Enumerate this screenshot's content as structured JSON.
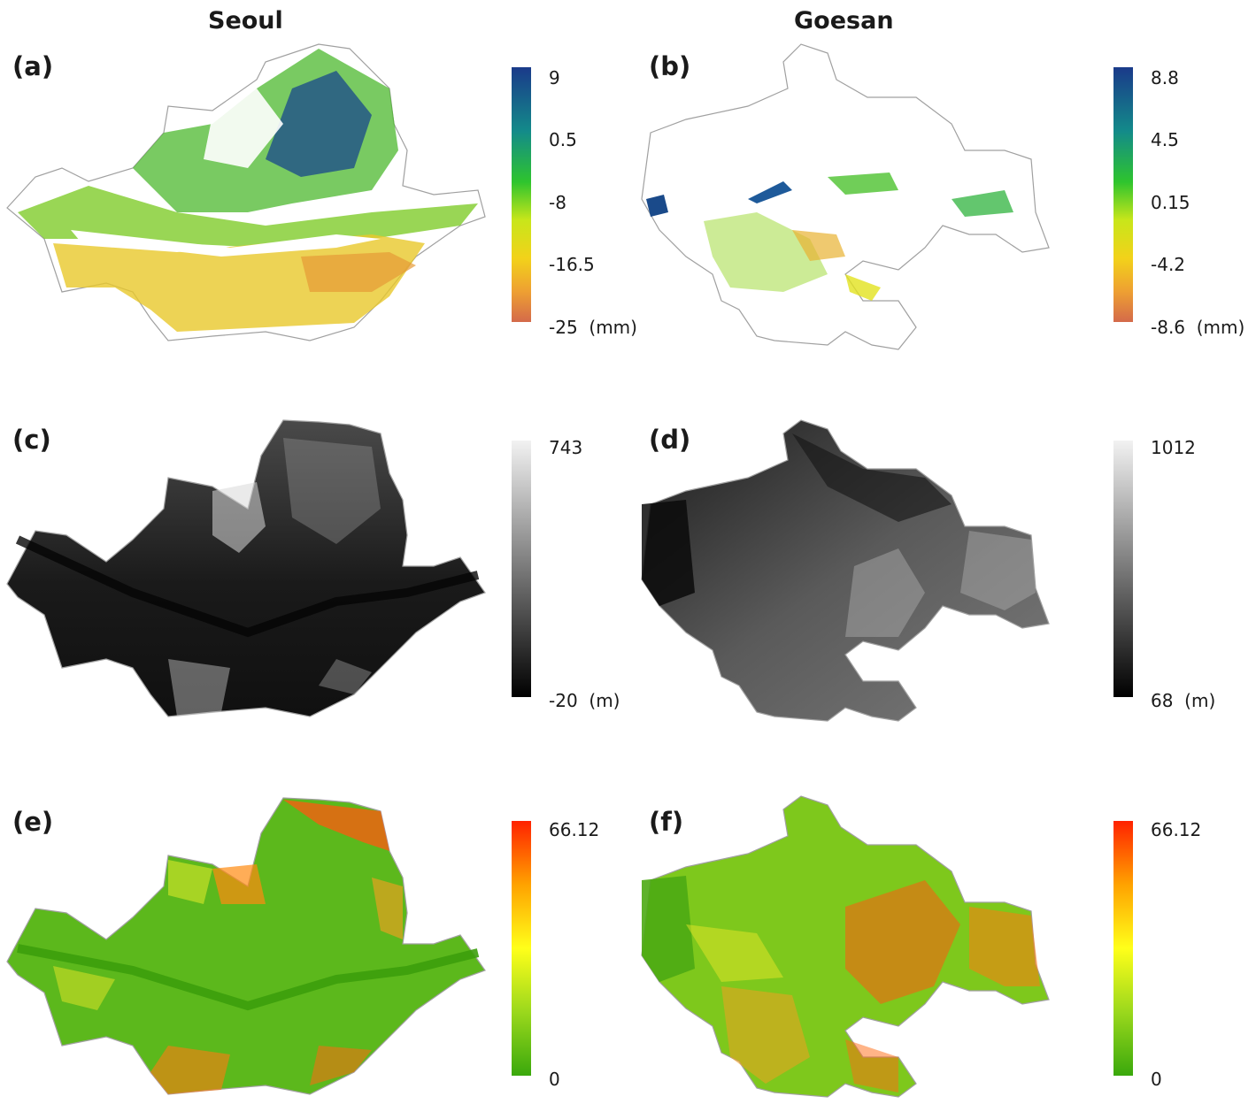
{
  "columns": {
    "left": "Seoul",
    "right": "Goesan"
  },
  "colors": {
    "divergent": [
      "#1a3a8a",
      "#138a8a",
      "#2ec42e",
      "#8ad62e",
      "#e6e61a",
      "#f2b82e",
      "#d9683a"
    ],
    "elevation": [
      "#000000",
      "#ffffff"
    ],
    "slope": [
      "#33aa0a",
      "#8fd418",
      "#ffff14",
      "#ffaa00",
      "#ff2a00"
    ]
  },
  "panels": [
    {
      "label": "(a)",
      "region": "Seoul",
      "variable": "displacement",
      "colorbar": {
        "max": "9",
        "ticks": [
          "9",
          "0.5",
          "-8",
          "-16.5"
        ],
        "min": "-25",
        "unit": "(mm)"
      }
    },
    {
      "label": "(b)",
      "region": "Goesan",
      "variable": "displacement",
      "colorbar": {
        "max": "8.8",
        "ticks": [
          "8.8",
          "4.5",
          "0.15",
          "-4.2"
        ],
        "min": "-8.6",
        "unit": "(mm)"
      }
    },
    {
      "label": "(c)",
      "region": "Seoul",
      "variable": "elevation",
      "colorbar": {
        "max": "743",
        "min": "-20",
        "unit": "(m)"
      }
    },
    {
      "label": "(d)",
      "region": "Goesan",
      "variable": "elevation",
      "colorbar": {
        "max": "1012",
        "min": "68",
        "unit": "(m)"
      }
    },
    {
      "label": "(e)",
      "region": "Seoul",
      "variable": "slope",
      "colorbar": {
        "max": "66.12",
        "min": "0"
      }
    },
    {
      "label": "(f)",
      "region": "Goesan",
      "variable": "slope",
      "colorbar": {
        "max": "66.12",
        "min": "0"
      }
    }
  ]
}
